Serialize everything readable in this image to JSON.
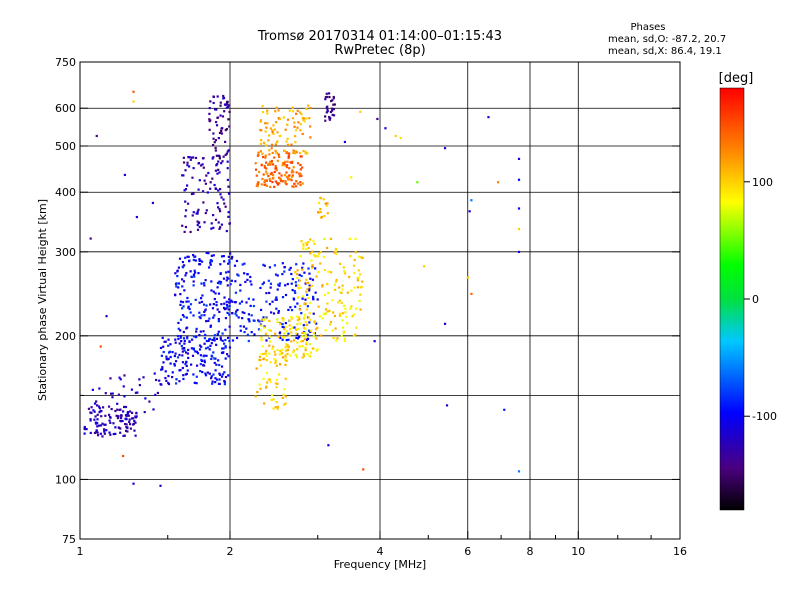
{
  "chart_data": {
    "type": "scatter",
    "title": "Tromsø 20170314 01:14:00–01:15:43",
    "subtitle": "RwPretec (8p)",
    "xlabel": "Frequency [MHz]",
    "ylabel": "Stationary phase Virtual Height [km]",
    "x_scale": "log",
    "y_scale": "log",
    "xlim": [
      1,
      16
    ],
    "ylim": [
      75,
      750
    ],
    "x_ticks": [
      1,
      2,
      4,
      6,
      8,
      10,
      16
    ],
    "x_tick_labels": [
      "1",
      "2",
      "4",
      "6",
      "8",
      "10",
      "16"
    ],
    "x_minor_ticks": [
      1.5,
      3,
      5,
      7,
      9,
      12,
      14
    ],
    "x_grid": [
      2,
      4,
      6,
      8,
      10
    ],
    "y_ticks": [
      75,
      100,
      200,
      300,
      400,
      500,
      600,
      750
    ],
    "y_tick_labels": [
      "75",
      "100",
      "200",
      "300",
      "400",
      "500",
      "600",
      "750"
    ],
    "y_minor_ticks": [
      150
    ],
    "y_grid": [
      100,
      150,
      200,
      300,
      400,
      500,
      600
    ],
    "grid": true,
    "stats": {
      "heading": "Phases",
      "line_o": "mean, sd,O: -87.2, 20.7",
      "line_x": "mean, sd,X: 86.4, 19.1"
    },
    "colorbar": {
      "label": "[deg]",
      "range": [
        -180,
        180
      ],
      "ticks": [
        100,
        0,
        -100
      ],
      "tick_labels": [
        "100",
        "0",
        "-100"
      ]
    },
    "clusters": [
      {
        "xmin": 1.02,
        "xmax": 1.3,
        "ymin": 123,
        "ymax": 142,
        "phase": -125,
        "n": 110
      },
      {
        "xmin": 1.05,
        "xmax": 1.45,
        "ymin": 138,
        "ymax": 168,
        "phase": -120,
        "n": 40
      },
      {
        "xmin": 1.45,
        "xmax": 2.0,
        "ymin": 158,
        "ymax": 200,
        "phase": -100,
        "n": 170
      },
      {
        "xmin": 1.55,
        "xmax": 2.1,
        "ymin": 195,
        "ymax": 300,
        "phase": -98,
        "n": 220
      },
      {
        "xmin": 2.1,
        "xmax": 3.0,
        "ymin": 195,
        "ymax": 285,
        "phase": -95,
        "n": 160
      },
      {
        "xmin": 1.6,
        "xmax": 2.0,
        "ymin": 330,
        "ymax": 480,
        "phase": -130,
        "n": 110
      },
      {
        "xmin": 1.8,
        "xmax": 2.0,
        "ymin": 460,
        "ymax": 640,
        "phase": -135,
        "n": 60
      },
      {
        "xmin": 2.25,
        "xmax": 2.6,
        "ymin": 140,
        "ymax": 185,
        "phase": 100,
        "n": 60
      },
      {
        "xmin": 2.3,
        "xmax": 3.0,
        "ymin": 180,
        "ymax": 220,
        "phase": 95,
        "n": 110
      },
      {
        "xmin": 2.7,
        "xmax": 3.7,
        "ymin": 195,
        "ymax": 320,
        "phase": 95,
        "n": 170
      },
      {
        "xmin": 2.25,
        "xmax": 2.8,
        "ymin": 410,
        "ymax": 490,
        "phase": 140,
        "n": 140
      },
      {
        "xmin": 2.3,
        "xmax": 2.9,
        "ymin": 480,
        "ymax": 610,
        "phase": 115,
        "n": 90
      },
      {
        "xmin": 3.1,
        "xmax": 3.25,
        "ymin": 565,
        "ymax": 650,
        "phase": -140,
        "n": 30
      },
      {
        "xmin": 3.0,
        "xmax": 3.15,
        "ymin": 350,
        "ymax": 390,
        "phase": 110,
        "n": 15
      }
    ],
    "singles": [
      {
        "x": 1.05,
        "y": 320,
        "phase": -140
      },
      {
        "x": 1.08,
        "y": 525,
        "phase": -140
      },
      {
        "x": 1.13,
        "y": 220,
        "phase": -120
      },
      {
        "x": 1.1,
        "y": 190,
        "phase": 150
      },
      {
        "x": 1.23,
        "y": 435,
        "phase": -110
      },
      {
        "x": 1.28,
        "y": 650,
        "phase": 150
      },
      {
        "x": 1.28,
        "y": 620,
        "phase": 100
      },
      {
        "x": 1.3,
        "y": 355,
        "phase": -110
      },
      {
        "x": 1.28,
        "y": 98,
        "phase": -110
      },
      {
        "x": 1.45,
        "y": 97,
        "phase": -120
      },
      {
        "x": 1.4,
        "y": 380,
        "phase": -110
      },
      {
        "x": 1.22,
        "y": 112,
        "phase": 150
      },
      {
        "x": 3.15,
        "y": 118,
        "phase": -110
      },
      {
        "x": 3.4,
        "y": 510,
        "phase": -110
      },
      {
        "x": 3.5,
        "y": 430,
        "phase": 90
      },
      {
        "x": 3.65,
        "y": 590,
        "phase": 100
      },
      {
        "x": 3.7,
        "y": 105,
        "phase": 150
      },
      {
        "x": 3.9,
        "y": 195,
        "phase": -110
      },
      {
        "x": 3.95,
        "y": 570,
        "phase": -140
      },
      {
        "x": 4.1,
        "y": 545,
        "phase": -115
      },
      {
        "x": 4.3,
        "y": 525,
        "phase": 100
      },
      {
        "x": 4.4,
        "y": 520,
        "phase": 95
      },
      {
        "x": 4.75,
        "y": 420,
        "phase": 50
      },
      {
        "x": 4.9,
        "y": 280,
        "phase": 100
      },
      {
        "x": 5.4,
        "y": 495,
        "phase": -115
      },
      {
        "x": 5.45,
        "y": 143,
        "phase": -115
      },
      {
        "x": 5.4,
        "y": 212,
        "phase": -115
      },
      {
        "x": 6.1,
        "y": 385,
        "phase": -60
      },
      {
        "x": 6.05,
        "y": 365,
        "phase": -110
      },
      {
        "x": 6.0,
        "y": 265,
        "phase": 100
      },
      {
        "x": 6.1,
        "y": 245,
        "phase": 140
      },
      {
        "x": 6.6,
        "y": 575,
        "phase": -120
      },
      {
        "x": 6.9,
        "y": 420,
        "phase": 130
      },
      {
        "x": 7.1,
        "y": 140,
        "phase": -90
      },
      {
        "x": 7.6,
        "y": 470,
        "phase": -110
      },
      {
        "x": 7.6,
        "y": 425,
        "phase": -100
      },
      {
        "x": 7.6,
        "y": 370,
        "phase": -100
      },
      {
        "x": 7.6,
        "y": 335,
        "phase": 100
      },
      {
        "x": 7.6,
        "y": 300,
        "phase": -110
      },
      {
        "x": 7.6,
        "y": 104,
        "phase": -60
      }
    ]
  }
}
